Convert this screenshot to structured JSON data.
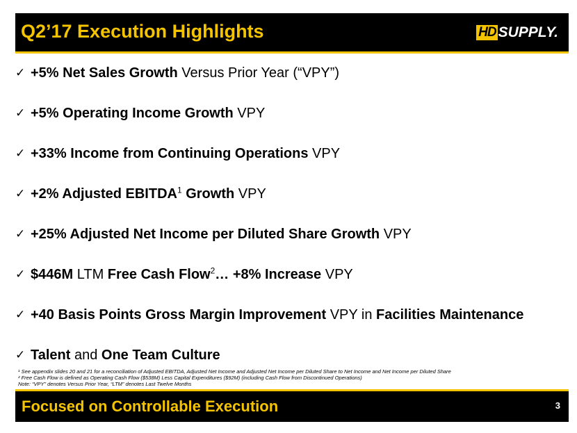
{
  "header": {
    "title": "Q2’17 Execution Highlights",
    "logo_hd": "HD",
    "logo_text": "SUPPLY."
  },
  "bullets": [
    {
      "parts": [
        {
          "t": "+5% Net Sales Growth",
          "b": true
        },
        {
          "t": " Versus Prior Year (“VPY”)",
          "b": false
        }
      ]
    },
    {
      "parts": [
        {
          "t": "+5% Operating Income Growth",
          "b": true
        },
        {
          "t": " VPY",
          "b": false
        }
      ]
    },
    {
      "parts": [
        {
          "t": "+33% Income from Continuing Operations",
          "b": true
        },
        {
          "t": " VPY",
          "b": false
        }
      ]
    },
    {
      "parts": [
        {
          "t": "+2% Adjusted EBITDA",
          "b": true
        },
        {
          "t": "1",
          "sup": true
        },
        {
          "t": " Growth",
          "b": true
        },
        {
          "t": " VPY",
          "b": false
        }
      ]
    },
    {
      "parts": [
        {
          "t": "+25% Adjusted Net Income per Diluted Share Growth",
          "b": true
        },
        {
          "t": " VPY",
          "b": false
        }
      ]
    },
    {
      "parts": [
        {
          "t": "$446M",
          "b": true
        },
        {
          "t": " LTM ",
          "b": false
        },
        {
          "t": "Free Cash Flow",
          "b": true
        },
        {
          "t": "2",
          "sup": true
        },
        {
          "t": "… +8% Increase",
          "b": true
        },
        {
          "t": " VPY",
          "b": false
        }
      ]
    },
    {
      "parts": [
        {
          "t": "+40 Basis Points Gross Margin Improvement",
          "b": true
        },
        {
          "t": " VPY in ",
          "b": false
        },
        {
          "t": "Facilities Maintenance",
          "b": true
        }
      ]
    },
    {
      "parts": [
        {
          "t": "Talent",
          "b": true
        },
        {
          "t": " and ",
          "b": false
        },
        {
          "t": "One Team Culture",
          "b": true
        }
      ]
    }
  ],
  "footnotes": [
    "¹ See appendix slides 20 and 21 for a reconciliation of Adjusted EBITDA, Adjusted Net Income and Adjusted Net Income per Diluted Share to Net Income and Net Income per Diluted Share",
    "² Free Cash Flow is defined as Operating Cash Flow ($538M) Less Capital Expenditures ($92M) (including Cash Flow from Discontinued Operations)",
    "Note: “VPY” denotes Versus Prior Year, “LTM” denotes Last Twelve Months"
  ],
  "footer": {
    "text": "Focused on Controllable Execution",
    "page_number": "3"
  },
  "colors": {
    "accent": "#f5c400",
    "bar": "#000000"
  },
  "icons": {
    "bullet": "check-icon"
  }
}
